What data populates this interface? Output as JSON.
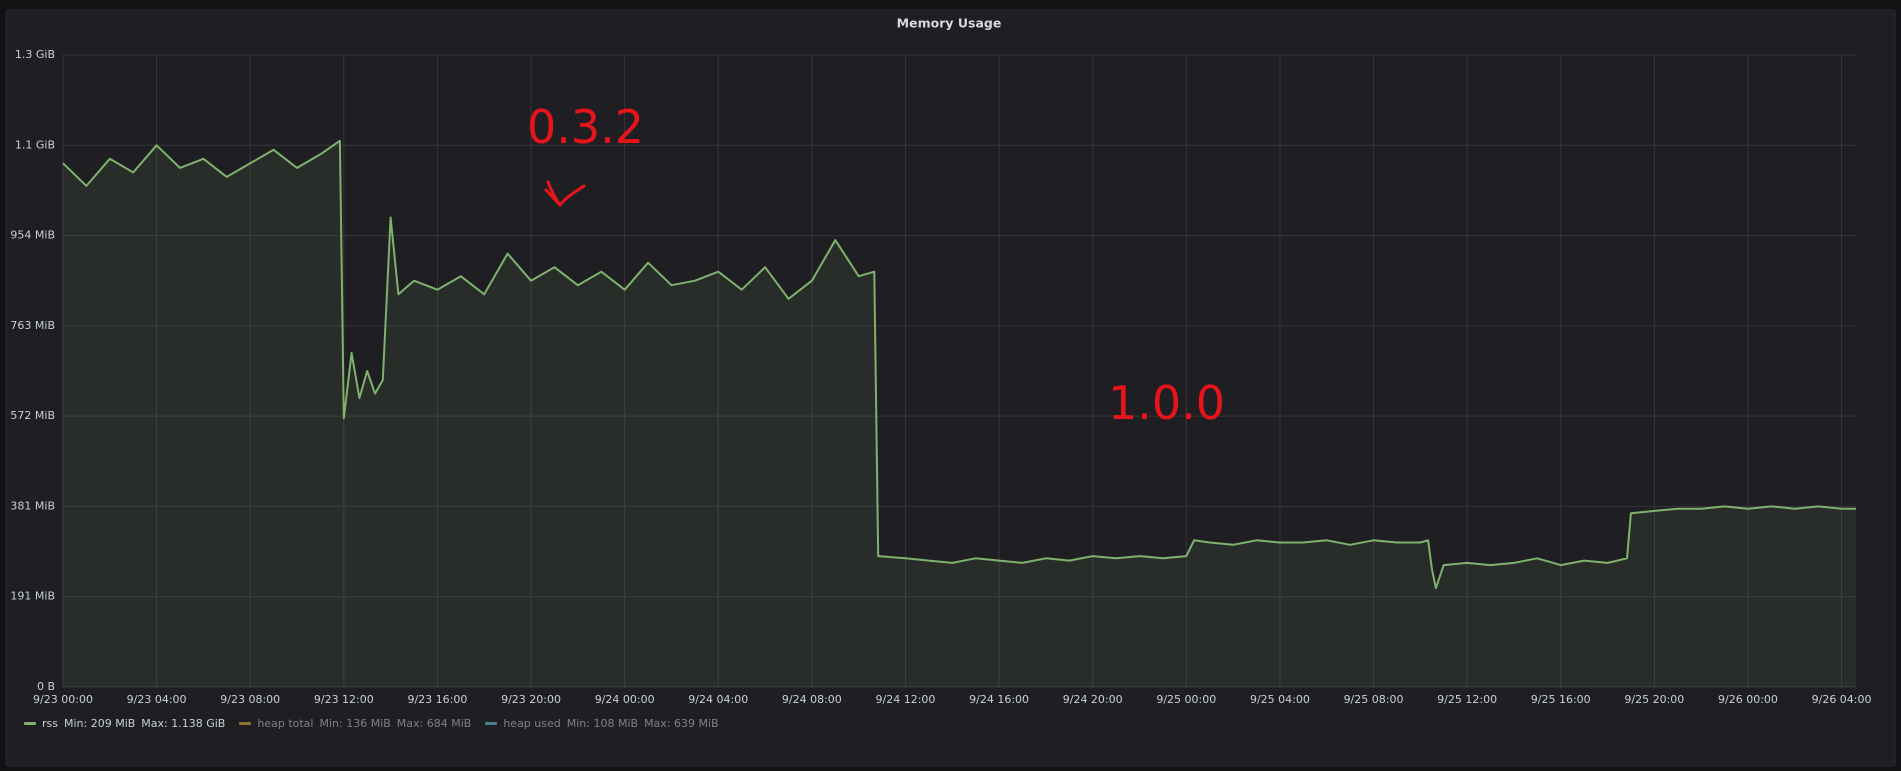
{
  "chart_data": {
    "type": "line",
    "title": "Memory Usage",
    "annotations": [
      "0.3.2",
      "1.0.0"
    ],
    "xlim": [
      "9/23 00:00",
      "9/26 04:37"
    ],
    "xticks": [
      "9/23 00:00",
      "9/23 04:00",
      "9/23 08:00",
      "9/23 12:00",
      "9/23 16:00",
      "9/23 20:00",
      "9/24 00:00",
      "9/24 04:00",
      "9/24 08:00",
      "9/24 12:00",
      "9/24 16:00",
      "9/24 20:00",
      "9/25 00:00",
      "9/25 04:00",
      "9/25 08:00",
      "9/25 12:00",
      "9/25 16:00",
      "9/25 20:00",
      "9/26 00:00",
      "9/26 04:00"
    ],
    "ylim": [
      0,
      1400000000
    ],
    "yticks": [
      {
        "value": 0,
        "label": "0 B"
      },
      {
        "value": 200000000,
        "label": "191 MiB"
      },
      {
        "value": 400000000,
        "label": "381 MiB"
      },
      {
        "value": 600000000,
        "label": "572 MiB"
      },
      {
        "value": 800000000,
        "label": "763 MiB"
      },
      {
        "value": 1000000000,
        "label": "954 MiB"
      },
      {
        "value": 1200000000,
        "label": "1.1 GiB"
      },
      {
        "value": 1400000000,
        "label": "1.3 GiB"
      }
    ],
    "grid": true,
    "x": [
      "9/23 00:00",
      "9/23 01:00",
      "9/23 02:00",
      "9/23 03:00",
      "9/23 04:00",
      "9/23 05:00",
      "9/23 06:00",
      "9/23 07:00",
      "9/23 08:00",
      "9/23 09:00",
      "9/23 10:00",
      "9/23 11:00",
      "9/23 11:50",
      "9/23 12:00",
      "9/23 12:20",
      "9/23 12:40",
      "9/23 13:00",
      "9/23 13:20",
      "9/23 13:40",
      "9/23 14:00",
      "9/23 14:20",
      "9/23 15:00",
      "9/23 16:00",
      "9/23 17:00",
      "9/23 18:00",
      "9/23 19:00",
      "9/23 20:00",
      "9/23 21:00",
      "9/23 22:00",
      "9/23 23:00",
      "9/24 00:00",
      "9/24 01:00",
      "9/24 02:00",
      "9/24 03:00",
      "9/24 04:00",
      "9/24 05:00",
      "9/24 06:00",
      "9/24 07:00",
      "9/24 08:00",
      "9/24 09:00",
      "9/24 10:00",
      "9/24 10:40",
      "9/24 10:50",
      "9/24 12:00",
      "9/24 13:00",
      "9/24 14:00",
      "9/24 15:00",
      "9/24 16:00",
      "9/24 17:00",
      "9/24 18:00",
      "9/24 19:00",
      "9/24 20:00",
      "9/24 21:00",
      "9/24 22:00",
      "9/24 23:00",
      "9/25 00:00",
      "9/25 00:20",
      "9/25 01:00",
      "9/25 02:00",
      "9/25 03:00",
      "9/25 04:00",
      "9/25 05:00",
      "9/25 06:00",
      "9/25 07:00",
      "9/25 08:00",
      "9/25 09:00",
      "9/25 10:00",
      "9/25 10:20",
      "9/25 10:30",
      "9/25 10:40",
      "9/25 11:00",
      "9/25 12:00",
      "9/25 13:00",
      "9/25 14:00",
      "9/25 15:00",
      "9/25 16:00",
      "9/25 17:00",
      "9/25 18:00",
      "9/25 18:50",
      "9/25 19:00",
      "9/25 20:00",
      "9/25 21:00",
      "9/25 22:00",
      "9/25 23:00",
      "9/26 00:00",
      "9/26 01:00",
      "9/26 02:00",
      "9/26 03:00",
      "9/26 04:00",
      "9/26 04:37"
    ],
    "series": [
      {
        "name": "rss",
        "color": "#7eb26d",
        "min_label": "Min: 209 MiB",
        "max_label": "Max: 1.138 GiB",
        "values": [
          1160000000,
          1110000000,
          1170000000,
          1140000000,
          1200000000,
          1150000000,
          1170000000,
          1130000000,
          1160000000,
          1190000000,
          1150000000,
          1180000000,
          1210000000,
          595000000,
          740000000,
          640000000,
          700000000,
          650000000,
          680000000,
          1040000000,
          870000000,
          900000000,
          880000000,
          910000000,
          870000000,
          960000000,
          900000000,
          930000000,
          890000000,
          920000000,
          880000000,
          940000000,
          890000000,
          900000000,
          920000000,
          880000000,
          930000000,
          860000000,
          900000000,
          990000000,
          910000000,
          920000000,
          290000000,
          285000000,
          280000000,
          275000000,
          285000000,
          280000000,
          275000000,
          285000000,
          280000000,
          290000000,
          285000000,
          290000000,
          285000000,
          290000000,
          325000000,
          320000000,
          315000000,
          325000000,
          320000000,
          320000000,
          325000000,
          315000000,
          325000000,
          320000000,
          320000000,
          325000000,
          260000000,
          219000000,
          270000000,
          275000000,
          270000000,
          275000000,
          285000000,
          270000000,
          280000000,
          275000000,
          285000000,
          385000000,
          390000000,
          395000000,
          395000000,
          400000000,
          395000000,
          400000000,
          395000000,
          400000000,
          395000000,
          395000000
        ]
      }
    ],
    "hidden_series": [
      {
        "name": "heap total",
        "color": "#eab839",
        "min_label": "Min: 136 MiB",
        "max_label": "Max: 684 MiB"
      },
      {
        "name": "heap used",
        "color": "#6ed0e0",
        "min_label": "Min: 108 MiB",
        "max_label": "Max: 639 MiB"
      }
    ]
  }
}
